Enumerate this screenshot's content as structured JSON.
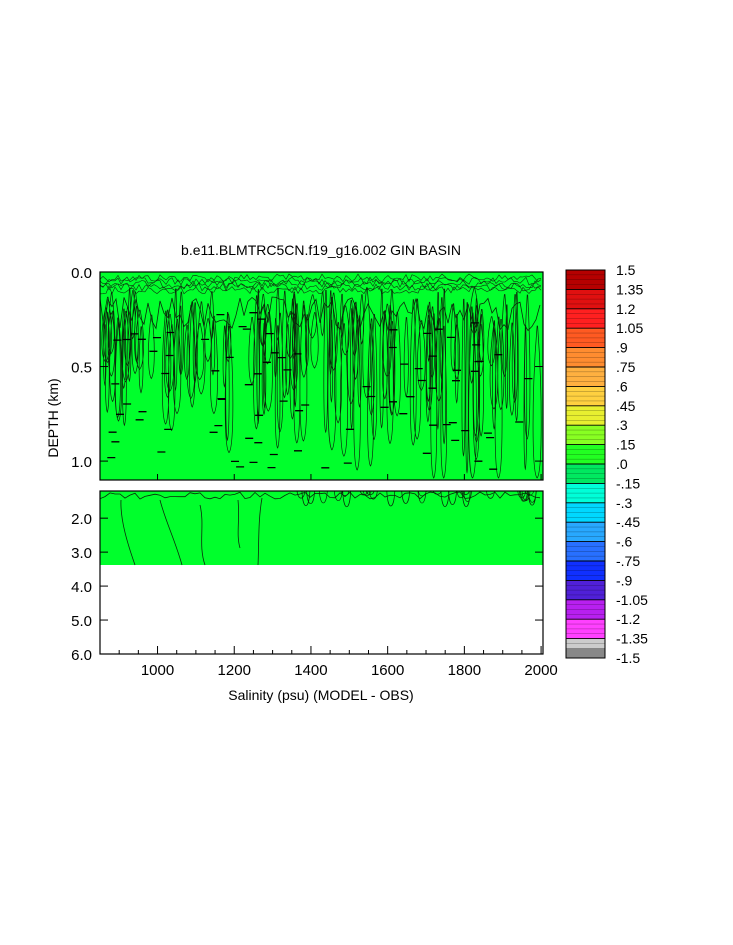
{
  "chart_data": {
    "type": "heatmap",
    "title": "b.e11.BLMTRC5CN.f19_g16.002 GIN BASIN",
    "xlabel": "Salinity (psu) (MODEL - OBS)",
    "ylabel": "DEPTH (km)",
    "xlim": [
      850,
      2005
    ],
    "x_ticks": [
      "1000",
      "1200",
      "1400",
      "1600",
      "1800",
      "2000"
    ],
    "x_tick_values": [
      1000,
      1200,
      1400,
      1600,
      1800,
      2000
    ],
    "upper_panel": {
      "ylim": [
        0.0,
        1.1
      ],
      "y_ticks": [
        "0.0",
        "0.5",
        "1.0"
      ],
      "y_tick_values": [
        0.0,
        0.5,
        1.0
      ]
    },
    "lower_panel": {
      "ylim": [
        1.2,
        6.0
      ],
      "y_ticks": [
        "2.0",
        "3.0",
        "4.0",
        "5.0",
        "6.0"
      ],
      "y_tick_values": [
        2.0,
        3.0,
        4.0,
        5.0,
        6.0
      ],
      "data_bottom_depth": 3.35
    },
    "dominant_value": 0.0,
    "colorbar": {
      "labels": [
        "1.5",
        "1.35",
        "1.2",
        "1.05",
        ".9",
        ".75",
        ".6",
        ".45",
        ".3",
        ".15",
        ".0",
        "-.15",
        "-.3",
        "-.45",
        "-.6",
        "-.75",
        "-.9",
        "-1.05",
        "-1.2",
        "-1.35",
        "-1.5"
      ],
      "values": [
        1.5,
        1.35,
        1.2,
        1.05,
        0.9,
        0.75,
        0.6,
        0.45,
        0.3,
        0.15,
        0.0,
        -0.15,
        -0.3,
        -0.45,
        -0.6,
        -0.75,
        -0.9,
        -1.05,
        -1.2,
        -1.35,
        -1.5
      ],
      "colors": [
        "#b50000",
        "#e01010",
        "#ff2020",
        "#ff5a22",
        "#ff8c30",
        "#ffb040",
        "#ffd040",
        "#e8ef30",
        "#88ff22",
        "#22ff22",
        "#00e860",
        "#00ffd8",
        "#00d8ff",
        "#28a8ff",
        "#2870ff",
        "#1030ff",
        "#5020d8",
        "#b820f0",
        "#ff40ff",
        "#cccccc"
      ]
    }
  }
}
